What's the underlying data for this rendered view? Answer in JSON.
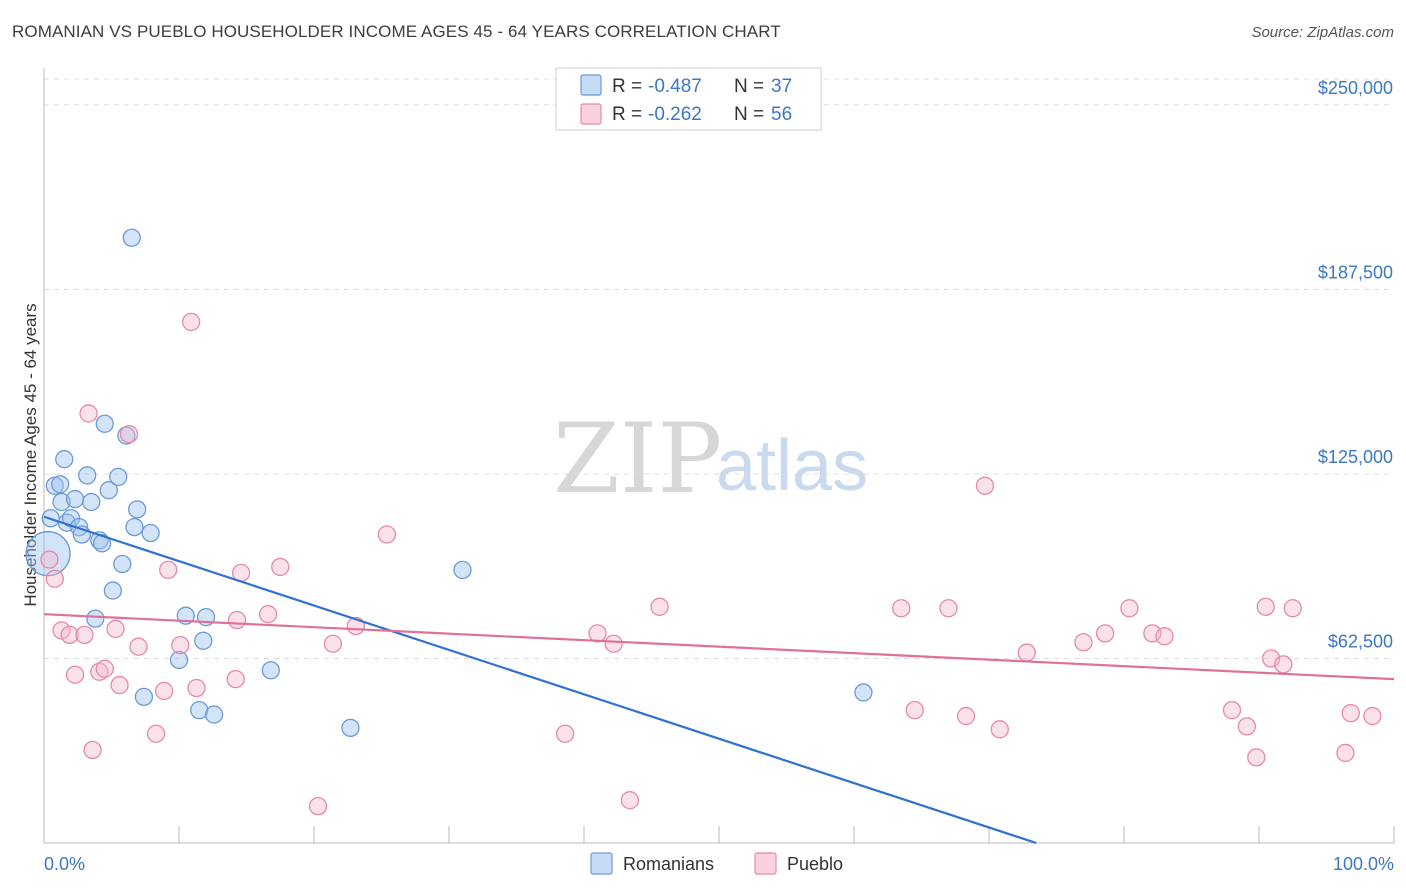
{
  "chart_data": {
    "type": "scatter",
    "title": "ROMANIAN VS PUEBLO HOUSEHOLDER INCOME AGES 45 - 64 YEARS CORRELATION CHART",
    "source": "Source: ZipAtlas.com",
    "xlabel": "",
    "ylabel": "Householder Income Ages 45 - 64 years",
    "xlim": [
      0,
      100
    ],
    "ylim": [
      0,
      262500
    ],
    "x_tick_labels": [
      "0.0%",
      "100.0%"
    ],
    "y_ticks": [
      {
        "value": 250000,
        "label": "$250,000"
      },
      {
        "value": 187500,
        "label": "$187,500"
      },
      {
        "value": 125000,
        "label": "$125,000"
      },
      {
        "value": 62500,
        "label": "$62,500"
      }
    ],
    "watermark": {
      "zip": "ZIP",
      "atlas": "atlas"
    },
    "legend": [
      {
        "series": "Romanians",
        "r_label": "R =",
        "r": "-0.487",
        "n_label": "N =",
        "n": "37"
      },
      {
        "series": "Pueblo",
        "r_label": "R =",
        "r": "-0.262",
        "n_label": "N =",
        "n": "56"
      }
    ],
    "series": [
      {
        "name": "Romanians",
        "color": "#6b9bd6",
        "trend": {
          "x0": 0,
          "y0": 110500,
          "x1": 73.5,
          "y1": 0
        },
        "points": [
          {
            "x": 0.3,
            "y": 98000,
            "big": true
          },
          {
            "x": 0.5,
            "y": 110000
          },
          {
            "x": 0.8,
            "y": 121000
          },
          {
            "x": 1.2,
            "y": 121500
          },
          {
            "x": 1.3,
            "y": 115500
          },
          {
            "x": 1.5,
            "y": 130000
          },
          {
            "x": 1.7,
            "y": 108500
          },
          {
            "x": 2.0,
            "y": 110000
          },
          {
            "x": 2.3,
            "y": 116500
          },
          {
            "x": 2.6,
            "y": 107000
          },
          {
            "x": 2.8,
            "y": 104500
          },
          {
            "x": 3.2,
            "y": 124500
          },
          {
            "x": 3.5,
            "y": 115500
          },
          {
            "x": 3.8,
            "y": 76000
          },
          {
            "x": 4.1,
            "y": 102500
          },
          {
            "x": 4.3,
            "y": 101500
          },
          {
            "x": 4.5,
            "y": 142000
          },
          {
            "x": 4.8,
            "y": 119500
          },
          {
            "x": 5.1,
            "y": 85500
          },
          {
            "x": 5.5,
            "y": 124000
          },
          {
            "x": 5.8,
            "y": 94500
          },
          {
            "x": 6.1,
            "y": 138000
          },
          {
            "x": 6.5,
            "y": 205000
          },
          {
            "x": 6.7,
            "y": 107000
          },
          {
            "x": 6.9,
            "y": 113000
          },
          {
            "x": 7.4,
            "y": 49500
          },
          {
            "x": 7.9,
            "y": 105000
          },
          {
            "x": 10.0,
            "y": 62000
          },
          {
            "x": 10.5,
            "y": 77000
          },
          {
            "x": 11.8,
            "y": 68500
          },
          {
            "x": 11.5,
            "y": 45000
          },
          {
            "x": 12.0,
            "y": 76500
          },
          {
            "x": 12.6,
            "y": 43500
          },
          {
            "x": 16.8,
            "y": 58500
          },
          {
            "x": 22.7,
            "y": 39000
          },
          {
            "x": 31.0,
            "y": 92500
          },
          {
            "x": 60.7,
            "y": 51000
          }
        ]
      },
      {
        "name": "Pueblo",
        "color": "#e58aa9",
        "trend": {
          "x0": 0,
          "y0": 77500,
          "x1": 100,
          "y1": 55500
        },
        "points": [
          {
            "x": 0.4,
            "y": 96000
          },
          {
            "x": 0.8,
            "y": 89500
          },
          {
            "x": 1.3,
            "y": 72000
          },
          {
            "x": 1.9,
            "y": 70500
          },
          {
            "x": 2.3,
            "y": 57000
          },
          {
            "x": 3.0,
            "y": 70500
          },
          {
            "x": 3.3,
            "y": 145500
          },
          {
            "x": 3.6,
            "y": 31500
          },
          {
            "x": 4.1,
            "y": 58000
          },
          {
            "x": 4.5,
            "y": 59000
          },
          {
            "x": 5.3,
            "y": 72500
          },
          {
            "x": 5.6,
            "y": 53500
          },
          {
            "x": 6.3,
            "y": 138500
          },
          {
            "x": 7.0,
            "y": 66500
          },
          {
            "x": 8.3,
            "y": 37000
          },
          {
            "x": 8.9,
            "y": 51500
          },
          {
            "x": 9.2,
            "y": 92500
          },
          {
            "x": 10.1,
            "y": 67000
          },
          {
            "x": 10.9,
            "y": 176500
          },
          {
            "x": 11.3,
            "y": 52500
          },
          {
            "x": 14.2,
            "y": 55500
          },
          {
            "x": 14.3,
            "y": 75500
          },
          {
            "x": 14.6,
            "y": 91500
          },
          {
            "x": 16.6,
            "y": 77500
          },
          {
            "x": 17.5,
            "y": 93500
          },
          {
            "x": 20.3,
            "y": 12500
          },
          {
            "x": 21.4,
            "y": 67500
          },
          {
            "x": 23.1,
            "y": 73500
          },
          {
            "x": 25.4,
            "y": 104500
          },
          {
            "x": 38.6,
            "y": 37000
          },
          {
            "x": 41.0,
            "y": 71000
          },
          {
            "x": 42.2,
            "y": 67500
          },
          {
            "x": 43.4,
            "y": 14500
          },
          {
            "x": 45.6,
            "y": 80000
          },
          {
            "x": 63.5,
            "y": 79500
          },
          {
            "x": 64.5,
            "y": 45000
          },
          {
            "x": 67.0,
            "y": 79500
          },
          {
            "x": 68.3,
            "y": 43000
          },
          {
            "x": 69.7,
            "y": 121000
          },
          {
            "x": 70.8,
            "y": 38500
          },
          {
            "x": 72.8,
            "y": 64500
          },
          {
            "x": 77.0,
            "y": 68000
          },
          {
            "x": 78.6,
            "y": 71000
          },
          {
            "x": 80.4,
            "y": 79500
          },
          {
            "x": 82.1,
            "y": 71000
          },
          {
            "x": 83.0,
            "y": 70000
          },
          {
            "x": 88.0,
            "y": 45000
          },
          {
            "x": 89.1,
            "y": 39500
          },
          {
            "x": 89.8,
            "y": 29000
          },
          {
            "x": 90.5,
            "y": 80000
          },
          {
            "x": 90.9,
            "y": 62500
          },
          {
            "x": 91.8,
            "y": 60500
          },
          {
            "x": 92.5,
            "y": 79500
          },
          {
            "x": 96.4,
            "y": 30500
          },
          {
            "x": 96.8,
            "y": 44000
          },
          {
            "x": 98.4,
            "y": 43000
          }
        ]
      }
    ]
  }
}
